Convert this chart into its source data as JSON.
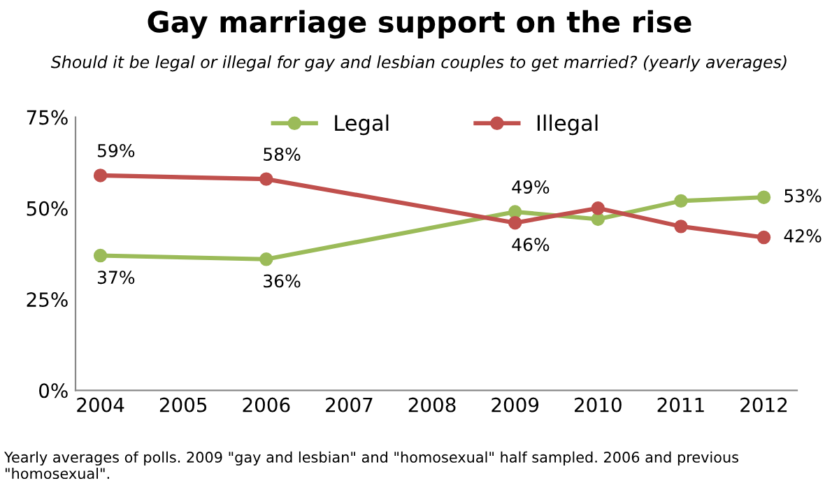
{
  "chart_data": {
    "type": "line",
    "title": "Gay marriage support on the rise",
    "subtitle": "Should it be legal or illegal for gay and lesbian couples to get married? (yearly averages)",
    "categories": [
      "2004",
      "2005",
      "2006",
      "2007",
      "2008",
      "2009",
      "2010",
      "2011",
      "2012"
    ],
    "series": [
      {
        "name": "Legal",
        "color": "#9bbb59",
        "values": [
          37,
          null,
          36,
          null,
          null,
          49,
          47,
          52,
          53
        ],
        "value_labels": [
          "37%",
          null,
          "36%",
          null,
          null,
          "49%",
          null,
          null,
          "53%"
        ]
      },
      {
        "name": "Illegal",
        "color": "#c0504d",
        "values": [
          59,
          null,
          58,
          null,
          null,
          46,
          50,
          45,
          42
        ],
        "value_labels": [
          "59%",
          null,
          "58%",
          null,
          null,
          "46%",
          null,
          null,
          "42%"
        ]
      }
    ],
    "ylim": [
      0,
      75
    ],
    "yticks": [
      {
        "value": 0,
        "label": "0%"
      },
      {
        "value": 25,
        "label": "25%"
      },
      {
        "value": 50,
        "label": "50%"
      },
      {
        "value": 75,
        "label": "75%"
      }
    ],
    "marker": "circle",
    "line_style": "solid",
    "grid": false,
    "legend": "top",
    "annotations": [
      "Yearly averages of polls. 2009 \"gay and lesbian\" and \"homosexual\" half sampled. 2006 and previous \"homosexual\"."
    ]
  }
}
